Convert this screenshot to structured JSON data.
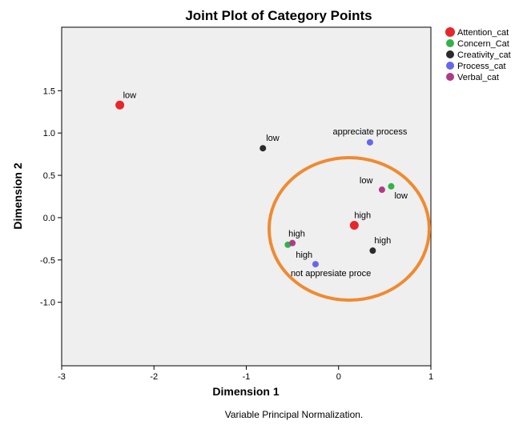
{
  "chart_data": {
    "type": "scatter",
    "title": "Joint Plot of Category Points",
    "xlabel": "Dimension 1",
    "ylabel": "Dimension 2",
    "footnote": "Variable Principal Normalization.",
    "xlim": [
      -3,
      1
    ],
    "ylim": [
      -1.75,
      2.25
    ],
    "x_ticks": [
      -3,
      -2,
      -1,
      0,
      1
    ],
    "x_tick_labels": [
      "-3",
      "-2",
      "-1",
      "0",
      "1"
    ],
    "y_ticks": [
      -1.0,
      -0.5,
      0.0,
      0.5,
      1.0,
      1.5
    ],
    "y_tick_labels": [
      "-1.0",
      "-0.5",
      "0.0",
      "0.5",
      "1.0",
      "1.5"
    ],
    "grid": false,
    "legend_position": "outside-top-right",
    "plot_background": "#efefef",
    "highlight_ellipse_color": "#f08a30",
    "series": [
      {
        "name": "Attention_cat",
        "color": "#e8262a",
        "points": [
          {
            "x": -2.37,
            "y": 1.33,
            "label": "low"
          },
          {
            "x": 0.17,
            "y": -0.09,
            "label": "high"
          }
        ]
      },
      {
        "name": "Concern_Cat",
        "color": "#33b24a",
        "points": [
          {
            "x": 0.57,
            "y": 0.37,
            "label": "low"
          },
          {
            "x": -0.55,
            "y": -0.32,
            "label": "high"
          }
        ]
      },
      {
        "name": "Creativity_cat",
        "color": "#2b2b2b",
        "points": [
          {
            "x": -0.82,
            "y": 0.82,
            "label": "low"
          },
          {
            "x": 0.37,
            "y": -0.39,
            "label": "high"
          }
        ]
      },
      {
        "name": "Process_cat",
        "color": "#6666ee",
        "points": [
          {
            "x": 0.34,
            "y": 0.89,
            "label": "appreciate process"
          },
          {
            "x": -0.25,
            "y": -0.55,
            "label": "not appresiate proce"
          }
        ]
      },
      {
        "name": "Verbal_cat",
        "color": "#b03a86",
        "points": [
          {
            "x": 0.47,
            "y": 0.33,
            "label": "low"
          },
          {
            "x": -0.5,
            "y": -0.3,
            "label": "high"
          }
        ]
      }
    ]
  }
}
